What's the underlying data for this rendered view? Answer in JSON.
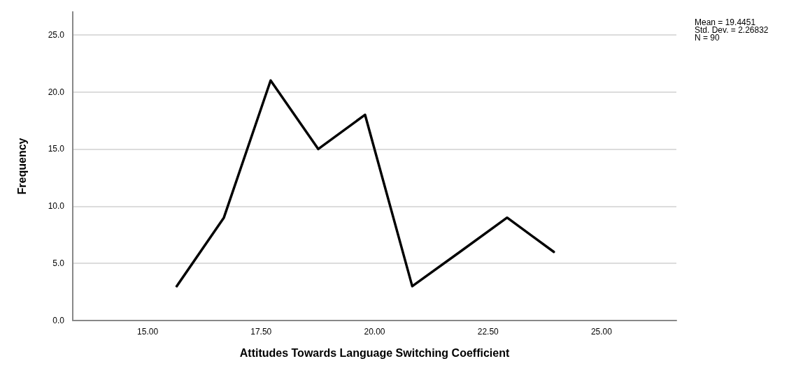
{
  "chart_data": {
    "type": "line",
    "xlabel": "Attitudes Towards Language Switching Coefficient",
    "ylabel": "Frequency",
    "x": [
      15.64,
      16.68,
      17.71,
      18.76,
      19.79,
      20.83,
      21.88,
      22.92,
      23.95
    ],
    "series": [
      {
        "color": "#000000",
        "values": [
          3,
          9,
          21,
          15,
          18,
          3,
          6,
          9,
          6
        ]
      }
    ],
    "xlim": [
      13.35,
      26.65
    ],
    "xticks": [
      {
        "value": 15,
        "label": "15.00"
      },
      {
        "value": 17.5,
        "label": "17.50"
      },
      {
        "value": 20,
        "label": "20.00"
      },
      {
        "value": 22.5,
        "label": "22.50"
      },
      {
        "value": 25,
        "label": "25.00"
      }
    ],
    "ylim": [
      0,
      27
    ],
    "yticks": [
      {
        "value": 0,
        "label": "0.0"
      },
      {
        "value": 5,
        "label": "5.0"
      },
      {
        "value": 10,
        "label": "10.0"
      },
      {
        "value": 15,
        "label": "15.0"
      },
      {
        "value": 20,
        "label": "20.0"
      },
      {
        "value": 25,
        "label": "25.0"
      }
    ],
    "grid": "y",
    "marker": "none",
    "line_style": "solid",
    "annotations": [
      "Mean = 19.4451",
      "Std. Dev. = 2.26832",
      "N = 90"
    ]
  }
}
